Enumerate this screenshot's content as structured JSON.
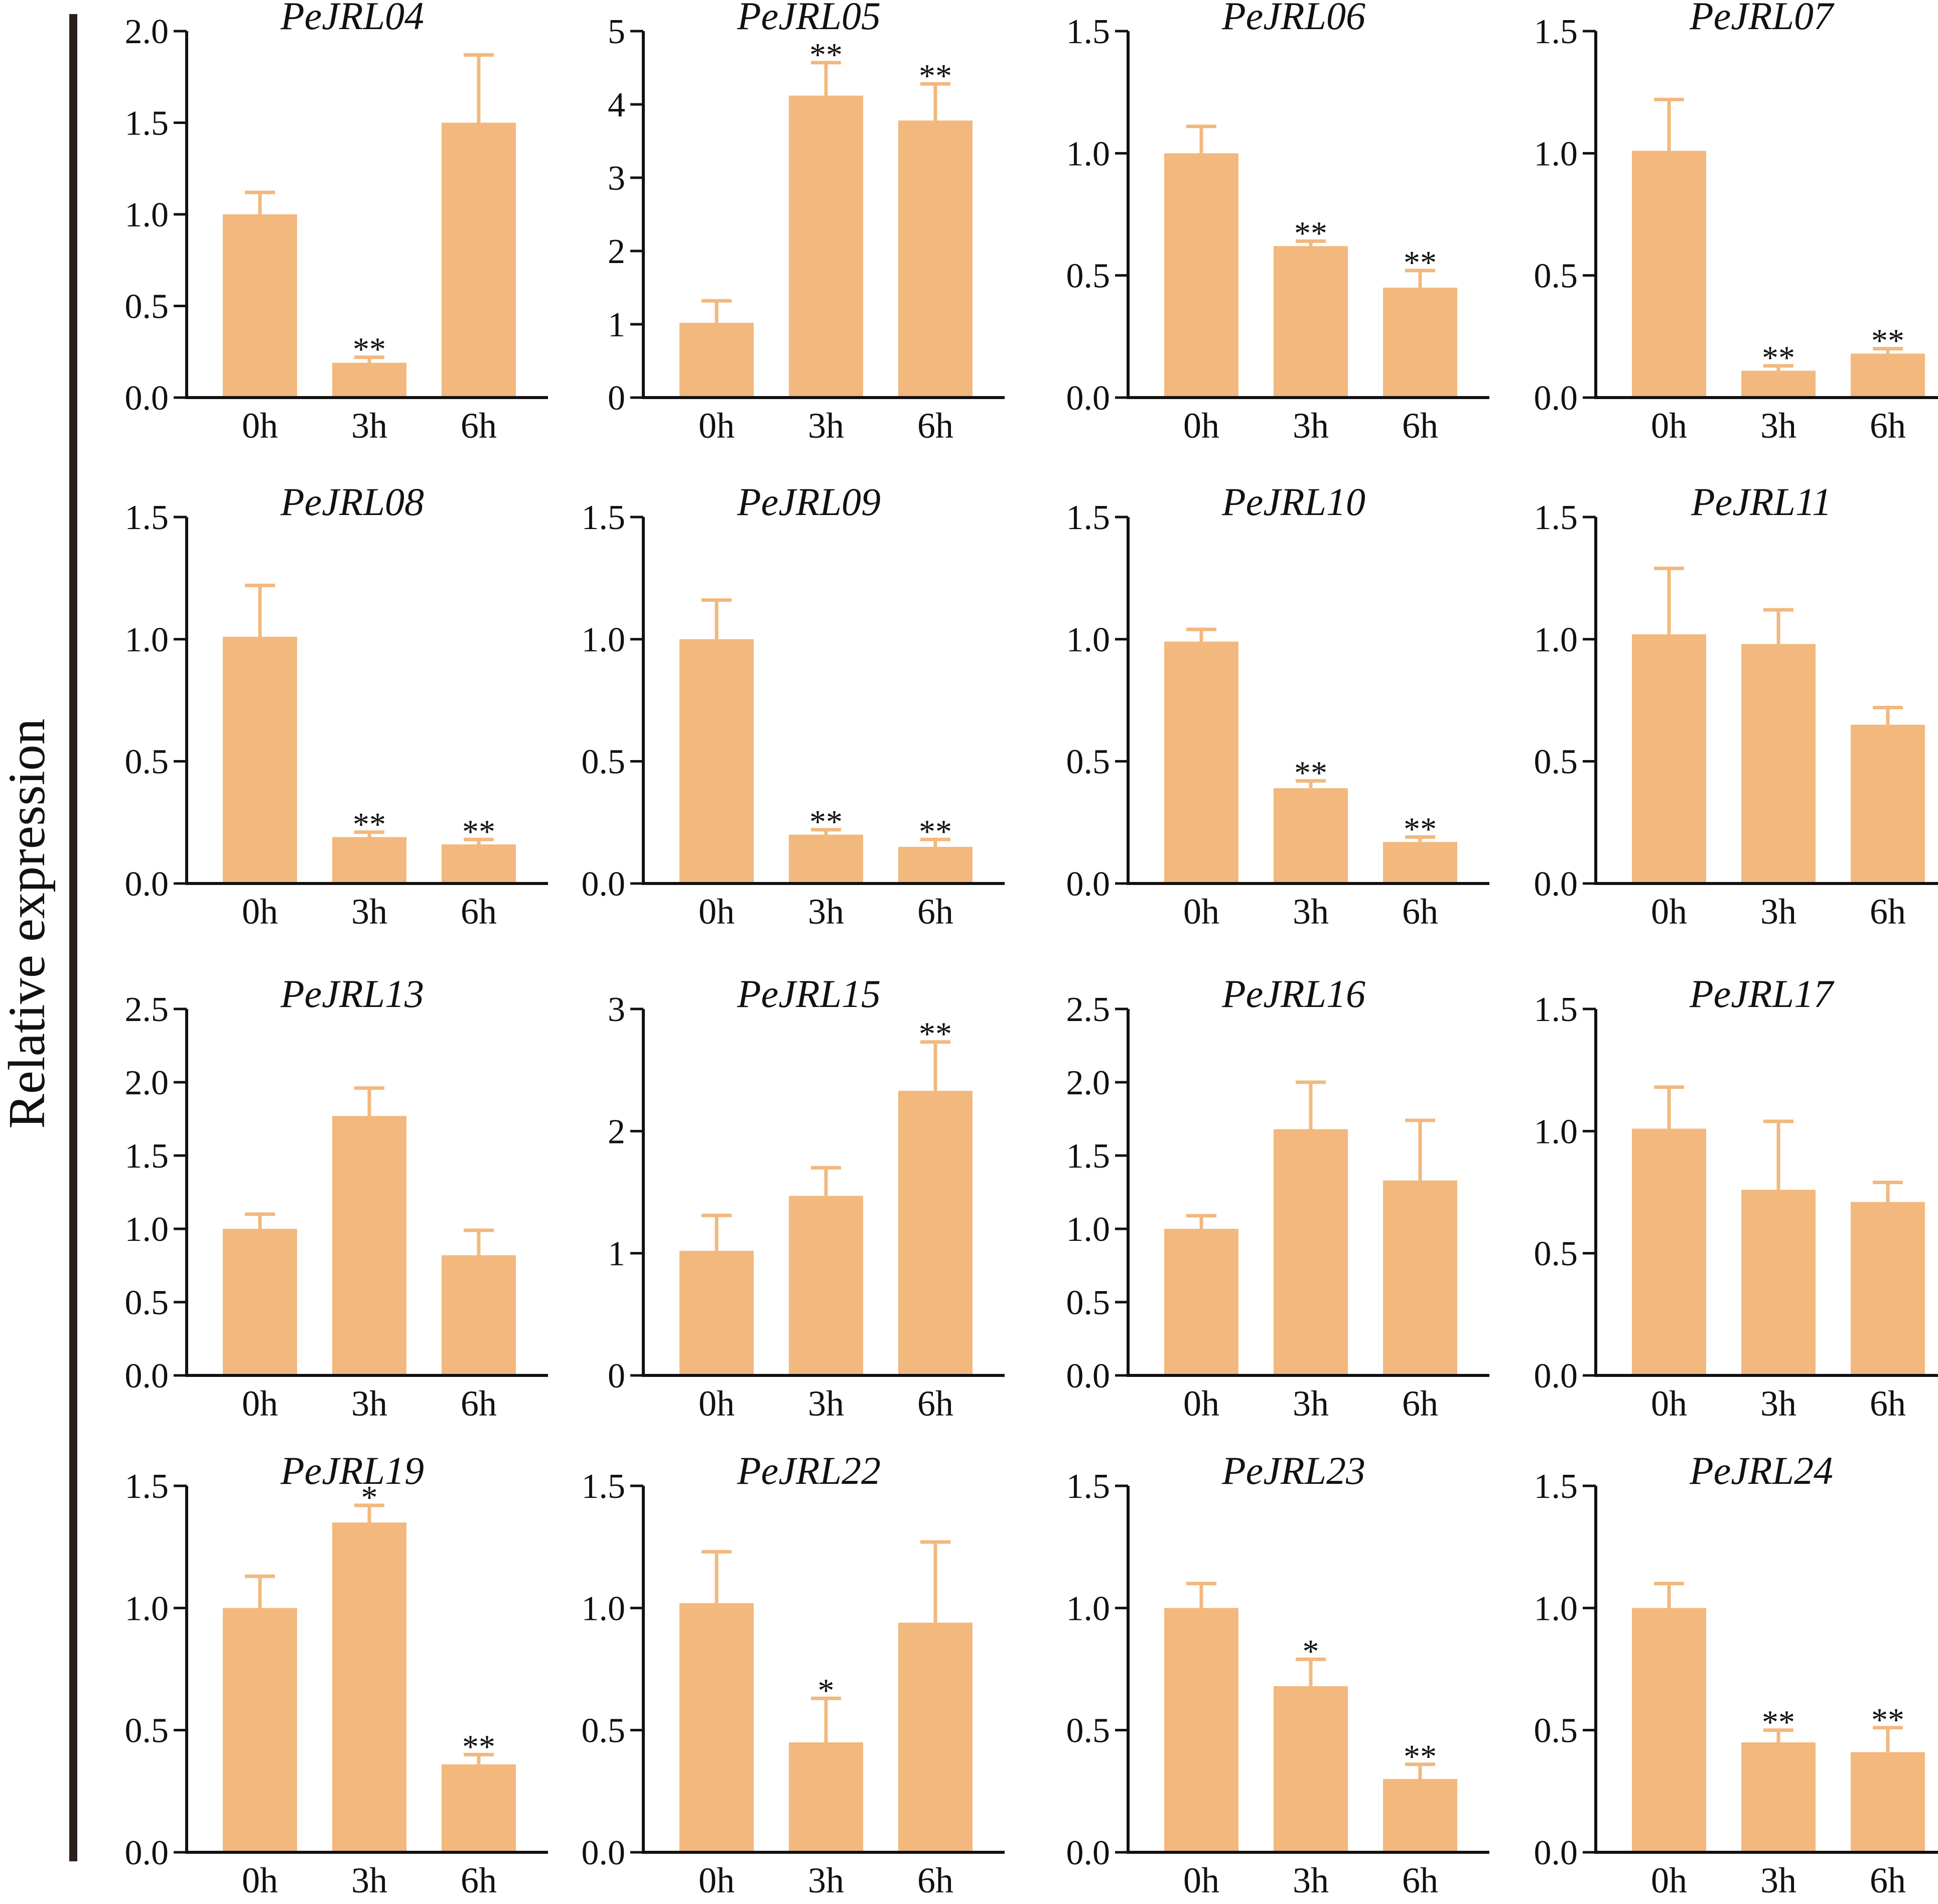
{
  "ylabel": "Relative expression",
  "colors": {
    "bar": "#F2B87E",
    "axis": "#111111",
    "divider": "#2a211c"
  },
  "chart_data": [
    {
      "type": "bar",
      "title": "PeJRL04",
      "categories": [
        "0h",
        "3h",
        "6h"
      ],
      "values": [
        1.0,
        0.19,
        1.5
      ],
      "errors": [
        0.12,
        0.03,
        0.37
      ],
      "significance": [
        "",
        "**",
        ""
      ],
      "ylim": [
        0,
        2.0
      ],
      "yticks": [
        "0.0",
        "0.5",
        "1.0",
        "1.5",
        "2.0"
      ]
    },
    {
      "type": "bar",
      "title": "PeJRL05",
      "categories": [
        "0h",
        "3h",
        "6h"
      ],
      "values": [
        1.02,
        4.12,
        3.78
      ],
      "errors": [
        0.3,
        0.45,
        0.5
      ],
      "significance": [
        "",
        "**",
        "**"
      ],
      "ylim": [
        0,
        5
      ],
      "yticks": [
        "0",
        "1",
        "2",
        "3",
        "4",
        "5"
      ]
    },
    {
      "type": "bar",
      "title": "PeJRL06",
      "categories": [
        "0h",
        "3h",
        "6h"
      ],
      "values": [
        1.0,
        0.62,
        0.45
      ],
      "errors": [
        0.11,
        0.02,
        0.07
      ],
      "significance": [
        "",
        "**",
        "**"
      ],
      "ylim": [
        0,
        1.5
      ],
      "yticks": [
        "0.0",
        "0.5",
        "1.0",
        "1.5"
      ]
    },
    {
      "type": "bar",
      "title": "PeJRL07",
      "categories": [
        "0h",
        "3h",
        "6h"
      ],
      "values": [
        1.01,
        0.11,
        0.18
      ],
      "errors": [
        0.21,
        0.02,
        0.02
      ],
      "significance": [
        "",
        "**",
        "**"
      ],
      "ylim": [
        0,
        1.5
      ],
      "yticks": [
        "0.0",
        "0.5",
        "1.0",
        "1.5"
      ]
    },
    {
      "type": "bar",
      "title": "PeJRL08",
      "categories": [
        "0h",
        "3h",
        "6h"
      ],
      "values": [
        1.01,
        0.19,
        0.16
      ],
      "errors": [
        0.21,
        0.02,
        0.02
      ],
      "significance": [
        "",
        "**",
        "**"
      ],
      "ylim": [
        0,
        1.5
      ],
      "yticks": [
        "0.0",
        "0.5",
        "1.0",
        "1.5"
      ]
    },
    {
      "type": "bar",
      "title": "PeJRL09",
      "categories": [
        "0h",
        "3h",
        "6h"
      ],
      "values": [
        1.0,
        0.2,
        0.15
      ],
      "errors": [
        0.16,
        0.02,
        0.03
      ],
      "significance": [
        "",
        "**",
        "**"
      ],
      "ylim": [
        0,
        1.5
      ],
      "yticks": [
        "0.0",
        "0.5",
        "1.0",
        "1.5"
      ]
    },
    {
      "type": "bar",
      "title": "PeJRL10",
      "categories": [
        "0h",
        "3h",
        "6h"
      ],
      "values": [
        0.99,
        0.39,
        0.17
      ],
      "errors": [
        0.05,
        0.03,
        0.02
      ],
      "significance": [
        "",
        "**",
        "**"
      ],
      "ylim": [
        0,
        1.5
      ],
      "yticks": [
        "0.0",
        "0.5",
        "1.0",
        "1.5"
      ]
    },
    {
      "type": "bar",
      "title": "PeJRL11",
      "categories": [
        "0h",
        "3h",
        "6h"
      ],
      "values": [
        1.02,
        0.98,
        0.65
      ],
      "errors": [
        0.27,
        0.14,
        0.07
      ],
      "significance": [
        "",
        "",
        ""
      ],
      "ylim": [
        0,
        1.5
      ],
      "yticks": [
        "0.0",
        "0.5",
        "1.0",
        "1.5"
      ]
    },
    {
      "type": "bar",
      "title": "PeJRL13",
      "categories": [
        "0h",
        "3h",
        "6h"
      ],
      "values": [
        1.0,
        1.77,
        0.82
      ],
      "errors": [
        0.1,
        0.19,
        0.17
      ],
      "significance": [
        "",
        "",
        ""
      ],
      "ylim": [
        0,
        2.5
      ],
      "yticks": [
        "0.0",
        "0.5",
        "1.0",
        "1.5",
        "2.0",
        "2.5"
      ]
    },
    {
      "type": "bar",
      "title": "PeJRL15",
      "categories": [
        "0h",
        "3h",
        "6h"
      ],
      "values": [
        1.02,
        1.47,
        2.33
      ],
      "errors": [
        0.29,
        0.23,
        0.4
      ],
      "significance": [
        "",
        "",
        "**"
      ],
      "ylim": [
        0,
        3
      ],
      "yticks": [
        "0",
        "1",
        "2",
        "3"
      ]
    },
    {
      "type": "bar",
      "title": "PeJRL16",
      "categories": [
        "0h",
        "3h",
        "6h"
      ],
      "values": [
        1.0,
        1.68,
        1.33
      ],
      "errors": [
        0.09,
        0.32,
        0.41
      ],
      "significance": [
        "",
        "",
        ""
      ],
      "ylim": [
        0,
        2.5
      ],
      "yticks": [
        "0.0",
        "0.5",
        "1.0",
        "1.5",
        "2.0",
        "2.5"
      ]
    },
    {
      "type": "bar",
      "title": "PeJRL17",
      "categories": [
        "0h",
        "3h",
        "6h"
      ],
      "values": [
        1.01,
        0.76,
        0.71
      ],
      "errors": [
        0.17,
        0.28,
        0.08
      ],
      "significance": [
        "",
        "",
        ""
      ],
      "ylim": [
        0,
        1.5
      ],
      "yticks": [
        "0.0",
        "0.5",
        "1.0",
        "1.5"
      ]
    },
    {
      "type": "bar",
      "title": "PeJRL19",
      "categories": [
        "0h",
        "3h",
        "6h"
      ],
      "values": [
        1.0,
        1.35,
        0.36
      ],
      "errors": [
        0.13,
        0.07,
        0.04
      ],
      "significance": [
        "",
        "*",
        "**"
      ],
      "ylim": [
        0,
        1.5
      ],
      "yticks": [
        "0.0",
        "0.5",
        "1.0",
        "1.5"
      ]
    },
    {
      "type": "bar",
      "title": "PeJRL22",
      "categories": [
        "0h",
        "3h",
        "6h"
      ],
      "values": [
        1.02,
        0.45,
        0.94
      ],
      "errors": [
        0.21,
        0.18,
        0.33
      ],
      "significance": [
        "",
        "*",
        ""
      ],
      "ylim": [
        0,
        1.5
      ],
      "yticks": [
        "0.0",
        "0.5",
        "1.0",
        "1.5"
      ]
    },
    {
      "type": "bar",
      "title": "PeJRL23",
      "categories": [
        "0h",
        "3h",
        "6h"
      ],
      "values": [
        1.0,
        0.68,
        0.3
      ],
      "errors": [
        0.1,
        0.11,
        0.06
      ],
      "significance": [
        "",
        "*",
        "**"
      ],
      "ylim": [
        0,
        1.5
      ],
      "yticks": [
        "0.0",
        "0.5",
        "1.0",
        "1.5"
      ]
    },
    {
      "type": "bar",
      "title": "PeJRL24",
      "categories": [
        "0h",
        "3h",
        "6h"
      ],
      "values": [
        1.0,
        0.45,
        0.41
      ],
      "errors": [
        0.1,
        0.05,
        0.1
      ],
      "significance": [
        "",
        "**",
        "**"
      ],
      "ylim": [
        0,
        1.5
      ],
      "yticks": [
        "0.0",
        "0.5",
        "1.0",
        "1.5"
      ]
    }
  ]
}
